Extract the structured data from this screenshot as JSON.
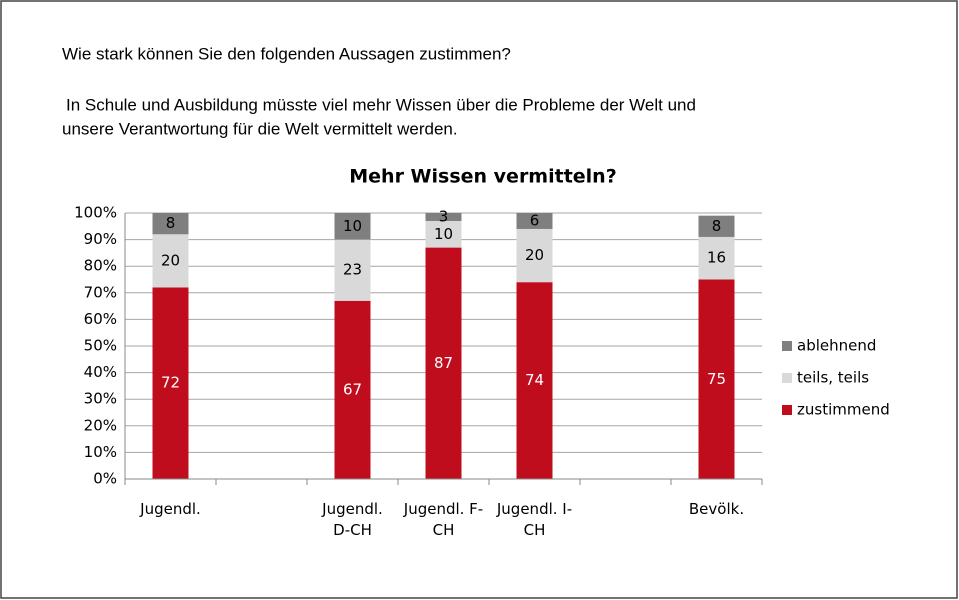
{
  "header": {
    "question": "Wie stark können Sie den folgenden Aussagen zustimmen?",
    "statement": [
      "In Schule und Ausbildung müsste viel mehr Wissen über die Probleme der Welt und",
      "unsere Verantwortung für die Welt vermittelt werden."
    ]
  },
  "chart_data": {
    "type": "stacked_bar",
    "title": "Mehr Wissen vermitteln?",
    "categories": [
      "Jugendl.",
      null,
      "Jugendl. D-CH",
      "Jugendl. F-CH",
      "Jugendl. I-CH",
      null,
      "Bevölk."
    ],
    "series": [
      {
        "name": "zustimmend",
        "color": "#c00d1e",
        "label_color": "#ffffff",
        "values": [
          72,
          null,
          67,
          87,
          74,
          null,
          75
        ]
      },
      {
        "name": "teils, teils",
        "color": "#d9d9d9",
        "label_color": "#000000",
        "values": [
          20,
          null,
          23,
          10,
          20,
          null,
          16
        ]
      },
      {
        "name": "ablehnend",
        "color": "#7f7f7f",
        "label_color": "#000000",
        "values": [
          8,
          null,
          10,
          3,
          6,
          null,
          8
        ]
      }
    ],
    "ylim": [
      0,
      100
    ],
    "yticks": [
      {
        "value": 0,
        "label": "0%"
      },
      {
        "value": 10,
        "label": "10%"
      },
      {
        "value": 20,
        "label": "20%"
      },
      {
        "value": 30,
        "label": "30%"
      },
      {
        "value": 40,
        "label": "40%"
      },
      {
        "value": 50,
        "label": "50%"
      },
      {
        "value": 60,
        "label": "60%"
      },
      {
        "value": 70,
        "label": "70%"
      },
      {
        "value": 80,
        "label": "80%"
      },
      {
        "value": 90,
        "label": "90%"
      },
      {
        "value": 100,
        "label": "100%"
      }
    ],
    "grid": true,
    "legend": "right"
  }
}
